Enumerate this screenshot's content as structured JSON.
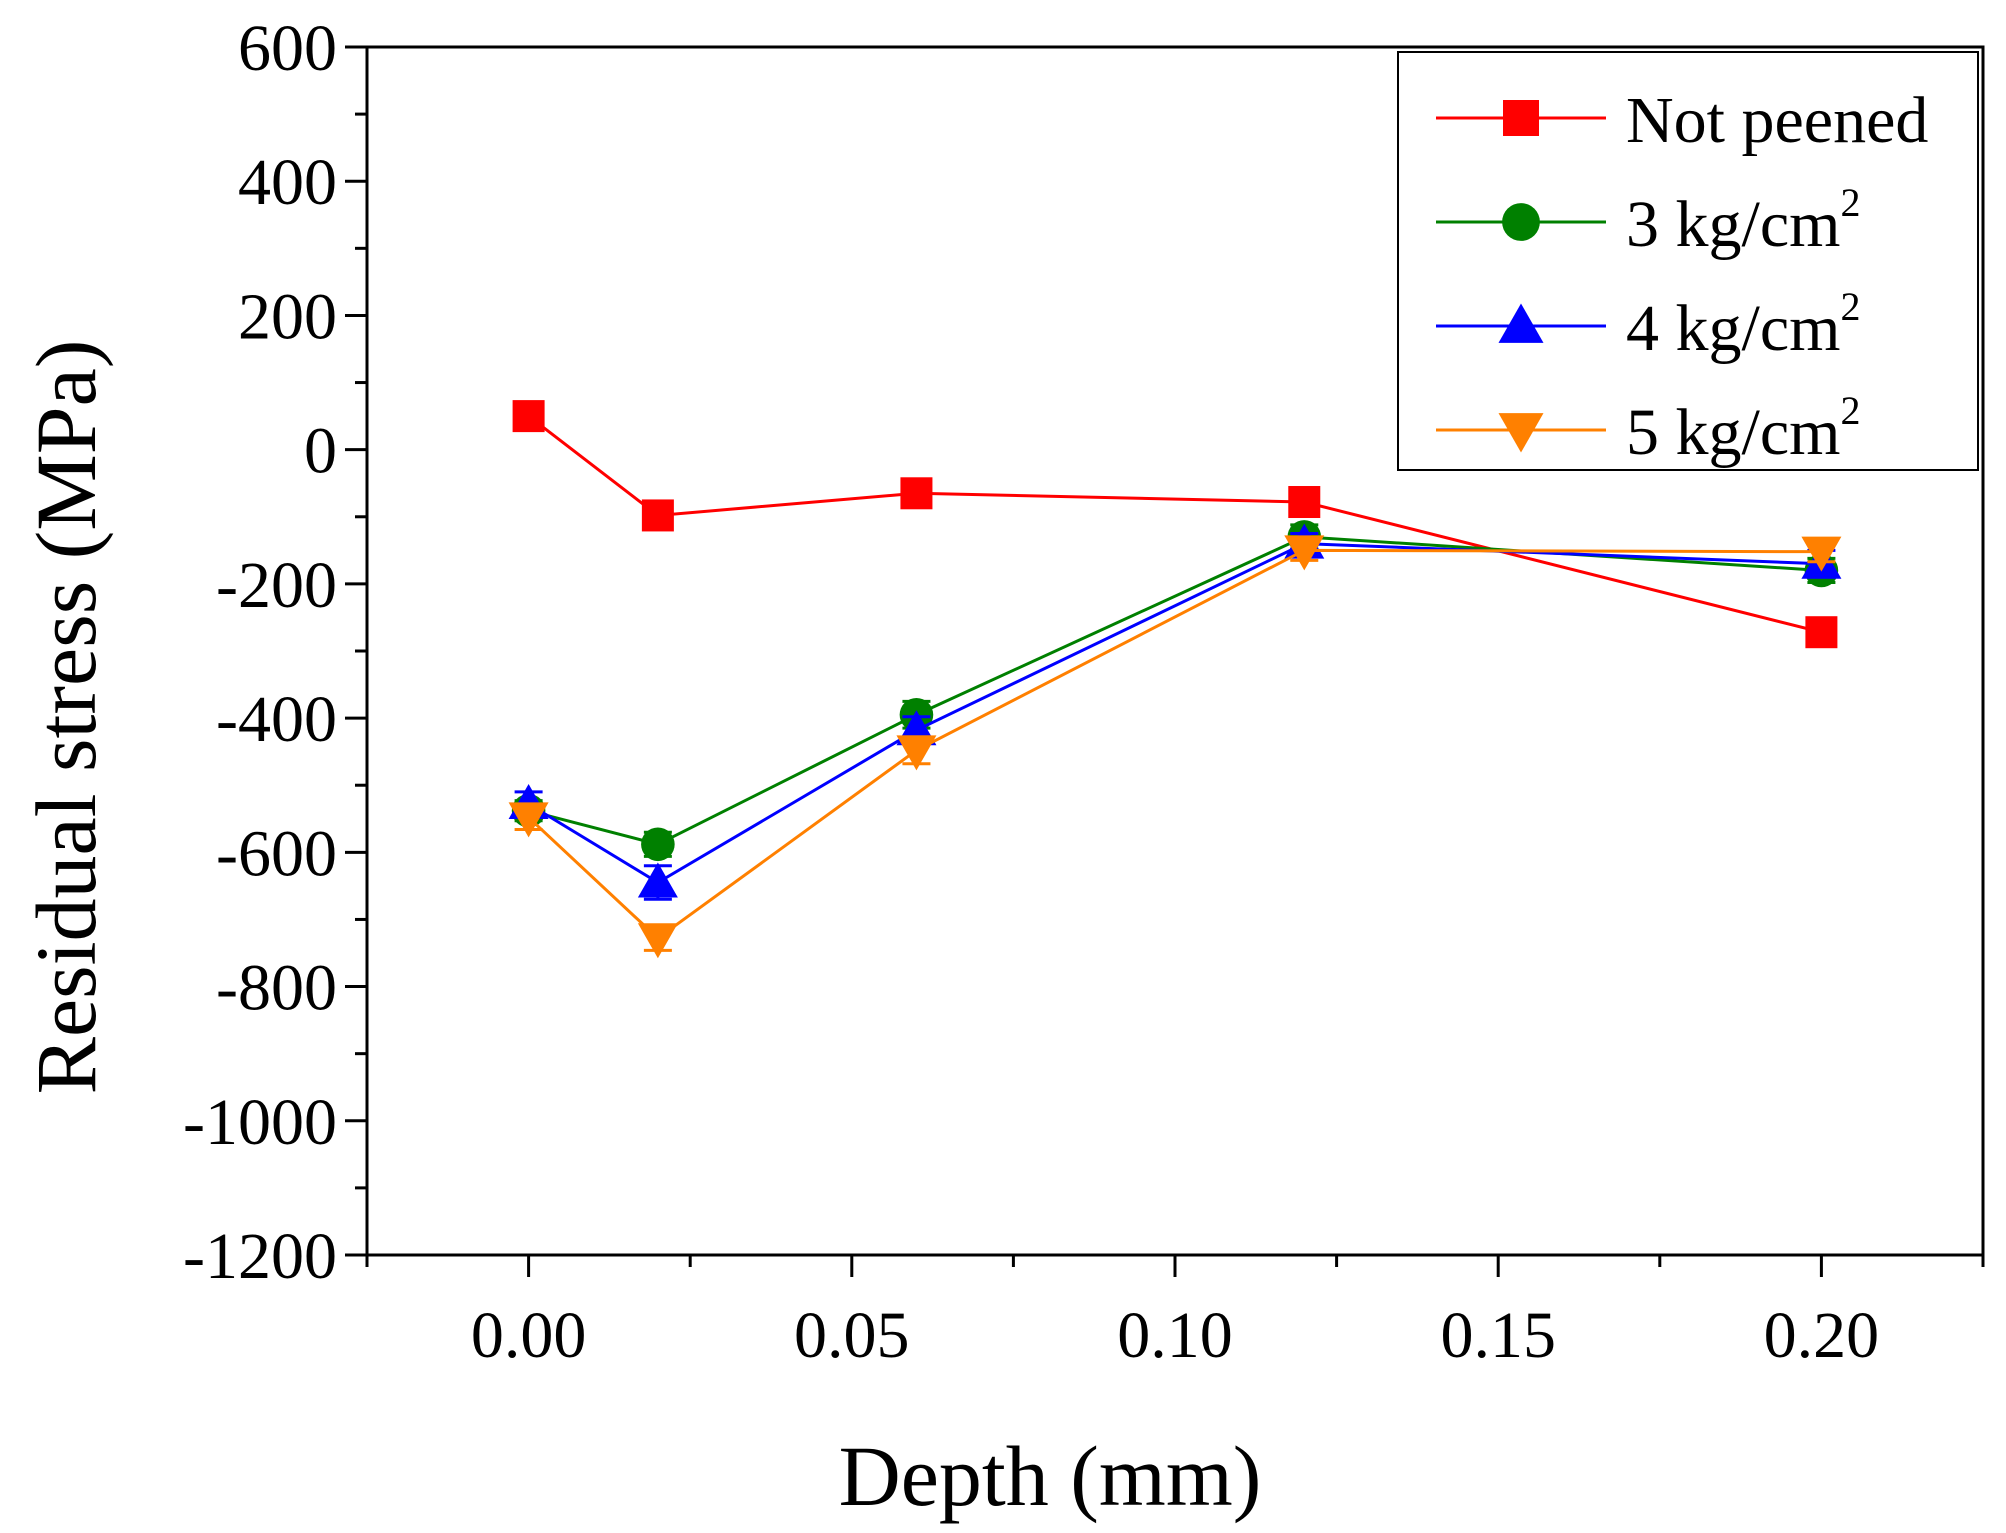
{
  "chart_data": {
    "type": "line",
    "title": "",
    "xlabel": "Depth (mm)",
    "ylabel": "Residual stress (MPa)",
    "xlim": [
      -0.025,
      0.225
    ],
    "ylim": [
      -1200,
      600
    ],
    "xticks": [
      "0.00",
      "0.05",
      "0.10",
      "0.15",
      "0.20"
    ],
    "xtick_values": [
      0,
      0.05,
      0.1,
      0.15,
      0.2
    ],
    "yticks": [
      "600",
      "400",
      "200",
      "0",
      "-200",
      "-400",
      "-600",
      "-800",
      "-1000",
      "-1200"
    ],
    "ytick_values": [
      600,
      400,
      200,
      0,
      -200,
      -400,
      -600,
      -800,
      -1000,
      -1200
    ],
    "legend_position": "top-right",
    "x": [
      0,
      0.02,
      0.06,
      0.12,
      0.2
    ],
    "series": [
      {
        "name": "Not peened",
        "name_main": "Not peened",
        "name_sup": "",
        "marker": "square",
        "color": "#ff0000",
        "values": [
          50,
          -98,
          -65,
          -78,
          -272
        ],
        "errors": [
          20,
          18,
          18,
          18,
          20
        ]
      },
      {
        "name": "3 kg/cm2",
        "name_main": "3 kg/cm",
        "name_sup": "2",
        "marker": "circle",
        "color": "#008000",
        "values": [
          -538,
          -588,
          -395,
          -130,
          -180
        ],
        "errors": [
          15,
          18,
          20,
          18,
          18
        ]
      },
      {
        "name": "4 kg/cm2",
        "name_main": "4 kg/cm",
        "name_sup": "2",
        "marker": "triangle-up",
        "color": "#0000ff",
        "values": [
          -528,
          -645,
          -418,
          -140,
          -170
        ],
        "errors": [
          18,
          25,
          20,
          15,
          20
        ]
      },
      {
        "name": "5 kg/cm2",
        "name_main": "5 kg/cm",
        "name_sup": "2",
        "marker": "triangle-down",
        "color": "#ff8000",
        "values": [
          -548,
          -728,
          -448,
          -150,
          -152
        ],
        "errors": [
          18,
          18,
          20,
          15,
          15
        ]
      }
    ]
  }
}
